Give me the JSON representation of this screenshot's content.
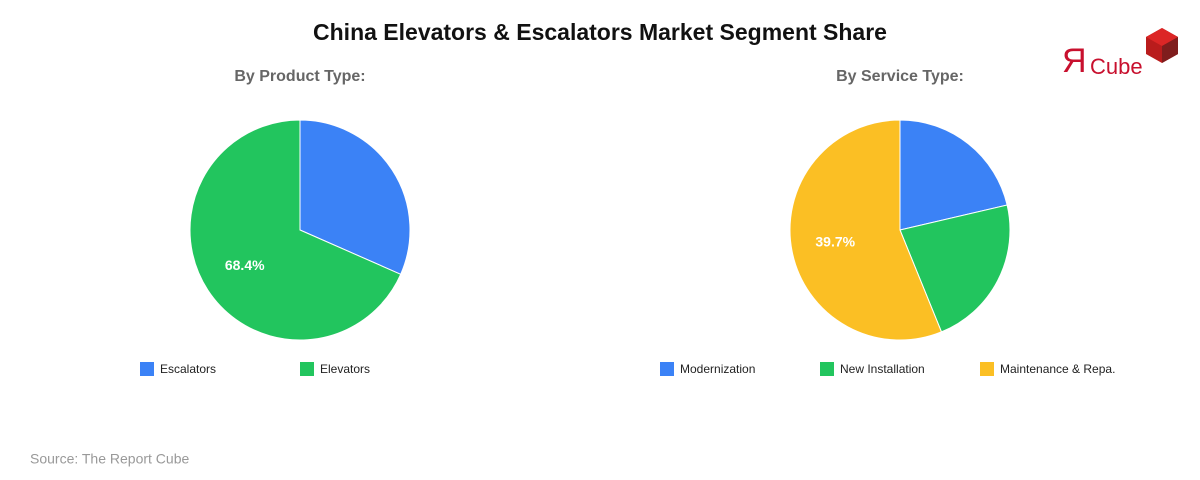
{
  "title": "China Elevators & Escalators Market Segment Share",
  "logo": {
    "mark": "Я",
    "name": "Cube"
  },
  "source": "Source: The Report Cube",
  "chart_data": [
    {
      "type": "pie",
      "title": "By Product Type:",
      "categories": [
        "Escalators",
        "Elevators"
      ],
      "values": [
        31.6,
        68.4
      ],
      "value_labels": [
        null,
        "68.4%"
      ],
      "colors": [
        "#3b82f6",
        "#22c55e"
      ]
    },
    {
      "type": "pie",
      "title": "By Service Type:",
      "categories": [
        "Modernization",
        "New Installation",
        "Maintenance & Repa."
      ],
      "values": [
        15.1,
        15.9,
        39.7
      ],
      "value_labels": [
        null,
        null,
        "39.7%"
      ],
      "colors": [
        "#3b82f6",
        "#22c55e",
        "#fbbf24"
      ]
    }
  ]
}
